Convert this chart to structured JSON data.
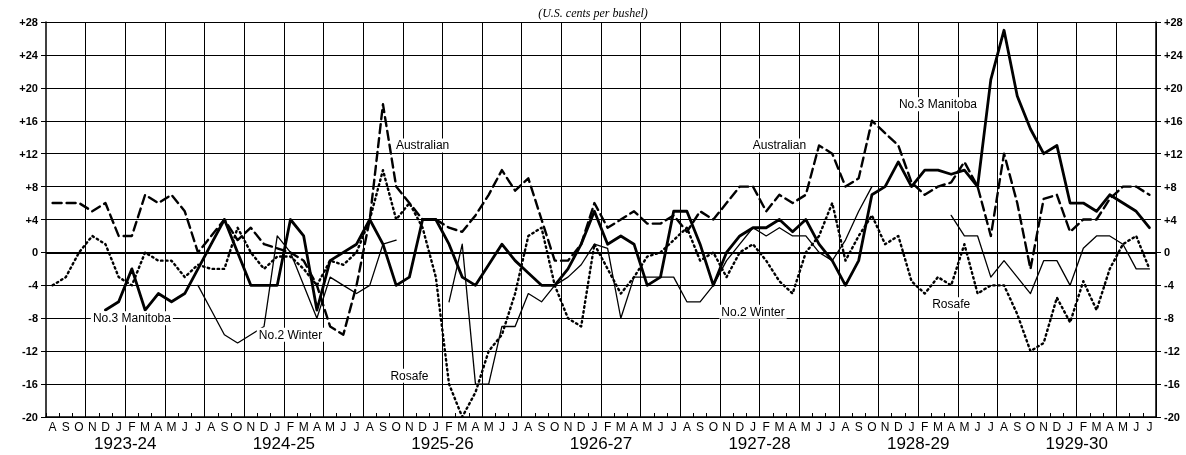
{
  "chart_data": {
    "type": "line",
    "title": "(U.S. cents per bushel)",
    "categories": [
      "A",
      "S",
      "O",
      "N",
      "D",
      "J",
      "F",
      "M",
      "A",
      "M",
      "J",
      "J",
      "A",
      "S",
      "O",
      "N",
      "D",
      "J",
      "F",
      "M",
      "A",
      "M",
      "J",
      "J",
      "A",
      "S",
      "O",
      "N",
      "D",
      "J",
      "F",
      "M",
      "A",
      "M",
      "J",
      "J",
      "A",
      "S",
      "O",
      "N",
      "D",
      "J",
      "F",
      "M",
      "A",
      "M",
      "J",
      "J",
      "A",
      "S",
      "O",
      "N",
      "D",
      "J",
      "F",
      "M",
      "A",
      "M",
      "J",
      "J",
      "A",
      "S",
      "O",
      "N",
      "D",
      "J",
      "F",
      "M",
      "A",
      "M",
      "J",
      "J",
      "A",
      "S",
      "O",
      "N",
      "D",
      "J",
      "F",
      "M",
      "A",
      "M",
      "J",
      "J"
    ],
    "series": [
      {
        "name": "Australian",
        "color": "#000000",
        "line_style": "dashed",
        "values": [
          6,
          6,
          6,
          5,
          6,
          2,
          2,
          7,
          6,
          7,
          5,
          0,
          2,
          4,
          1.5,
          3,
          1,
          0.5,
          0,
          -1,
          -4,
          -9,
          -10,
          -4,
          4,
          18,
          8,
          6,
          4,
          4,
          3,
          2.5,
          4.5,
          7,
          10,
          7.5,
          9,
          4,
          -1,
          -1,
          1,
          6,
          3,
          4,
          5,
          3.5,
          3.5,
          4.5,
          2.5,
          5,
          4,
          6,
          8,
          8,
          5,
          7,
          6,
          7,
          13,
          12,
          8,
          9,
          16,
          14.5,
          13,
          8.5,
          7,
          8,
          8.5,
          11,
          8,
          2,
          12,
          6,
          -2,
          6.5,
          7,
          2.5,
          4,
          4,
          6.5,
          8,
          8,
          7
        ]
      },
      {
        "name": "No.3 Manitoba",
        "color": "#000000",
        "line_style": "solid",
        "values": [
          null,
          null,
          null,
          null,
          -7,
          -6,
          -2,
          -7,
          -5,
          -6,
          -5,
          -2,
          1,
          4,
          0,
          -4,
          -4,
          -4,
          4,
          2,
          -7,
          -1,
          0,
          1,
          4,
          1,
          -4,
          -3,
          4,
          4,
          1,
          -3,
          -4,
          -1.5,
          1,
          -1,
          -2.5,
          -4,
          -4,
          -2,
          1,
          5,
          1,
          2,
          1,
          -4,
          -3,
          5,
          5,
          1,
          -4,
          0,
          2,
          3,
          3,
          4,
          2.5,
          4,
          1,
          -1,
          -4,
          -1,
          7,
          8,
          11,
          8,
          10,
          10,
          9.5,
          10,
          8,
          21,
          27,
          19,
          15,
          12,
          13,
          6,
          6,
          5,
          7,
          6,
          5,
          3
        ]
      },
      {
        "name": "No.2 Winter",
        "color": "#000000",
        "line_style": "solid",
        "values": [
          null,
          null,
          null,
          null,
          null,
          null,
          null,
          null,
          null,
          null,
          null,
          -4,
          -7,
          -10,
          -11,
          -10,
          -9,
          2,
          0,
          -4,
          -8,
          -3,
          -4,
          -5,
          -4,
          1,
          1.5,
          null,
          null,
          null,
          -6,
          1,
          -16,
          -16,
          -9,
          -9,
          -5,
          -6,
          -4,
          -3,
          -1.5,
          1,
          0.5,
          -8,
          -3,
          -3,
          -3,
          -3,
          -6,
          -6,
          -4,
          -1,
          1,
          3,
          2,
          3,
          2,
          2,
          0,
          -1,
          1.5,
          5,
          8,
          null,
          null,
          null,
          null,
          null,
          4.5,
          2,
          2,
          -3,
          -1,
          -3,
          -5,
          -1,
          -1,
          -4,
          0.5,
          2,
          2,
          1,
          -2,
          -2
        ]
      },
      {
        "name": "Rosafe",
        "color": "#000000",
        "line_style": "dotted",
        "values": [
          -4,
          -3,
          0,
          2,
          1,
          -3,
          -4,
          0,
          -1,
          -1,
          -3,
          -1.5,
          -2,
          -2,
          3,
          0,
          -2,
          -0.5,
          -0.5,
          -2,
          -4,
          -1,
          -1.5,
          0,
          4,
          10,
          4,
          6,
          3,
          -3,
          -16,
          -20,
          -17,
          -12,
          -10,
          -5,
          2,
          3,
          -4,
          -8,
          -9,
          1,
          -2,
          -5,
          -3,
          -0.5,
          0,
          1.5,
          3,
          -1,
          0,
          -3,
          0,
          1,
          -1,
          -3.5,
          -5,
          0,
          2,
          6,
          -1,
          2,
          4.5,
          1,
          2,
          -3.5,
          -5,
          -3,
          -4,
          1,
          -5,
          -4,
          -4,
          -7.5,
          -12,
          -11,
          -5.5,
          -8.5,
          -3.5,
          -7,
          -2,
          1,
          2,
          -2
        ]
      }
    ],
    "ylim": [
      -20,
      28
    ],
    "yticks": [
      -20,
      -16,
      -12,
      -8,
      -4,
      0,
      {
        "value": 4,
        "label": "+4"
      },
      {
        "value": 8,
        "label": "+8"
      },
      {
        "value": 12,
        "label": "+12"
      },
      {
        "value": 16,
        "label": "+16"
      },
      {
        "value": 20,
        "label": "+20"
      },
      {
        "value": 24,
        "label": "+24"
      },
      {
        "value": 28,
        "label": "+28"
      }
    ],
    "y2lim": [
      -20,
      28
    ],
    "y2ticks": [
      -20,
      -16,
      -12,
      -8,
      -4,
      0,
      {
        "value": 4,
        "label": "+4"
      },
      {
        "value": 8,
        "label": "+8"
      },
      {
        "value": 12,
        "label": "+12"
      },
      {
        "value": 16,
        "label": "+16"
      },
      {
        "value": 20,
        "label": "+20"
      },
      {
        "value": 24,
        "label": "+24"
      },
      {
        "value": 28,
        "label": "+28"
      }
    ],
    "grid": true,
    "ref_lines": [
      {
        "axis": "y",
        "value": 0
      }
    ],
    "annotations": [
      "1923-24",
      "1924-25",
      "1925-26",
      "1926-27",
      "1927-28",
      "1928-29",
      "1929-30"
    ]
  }
}
